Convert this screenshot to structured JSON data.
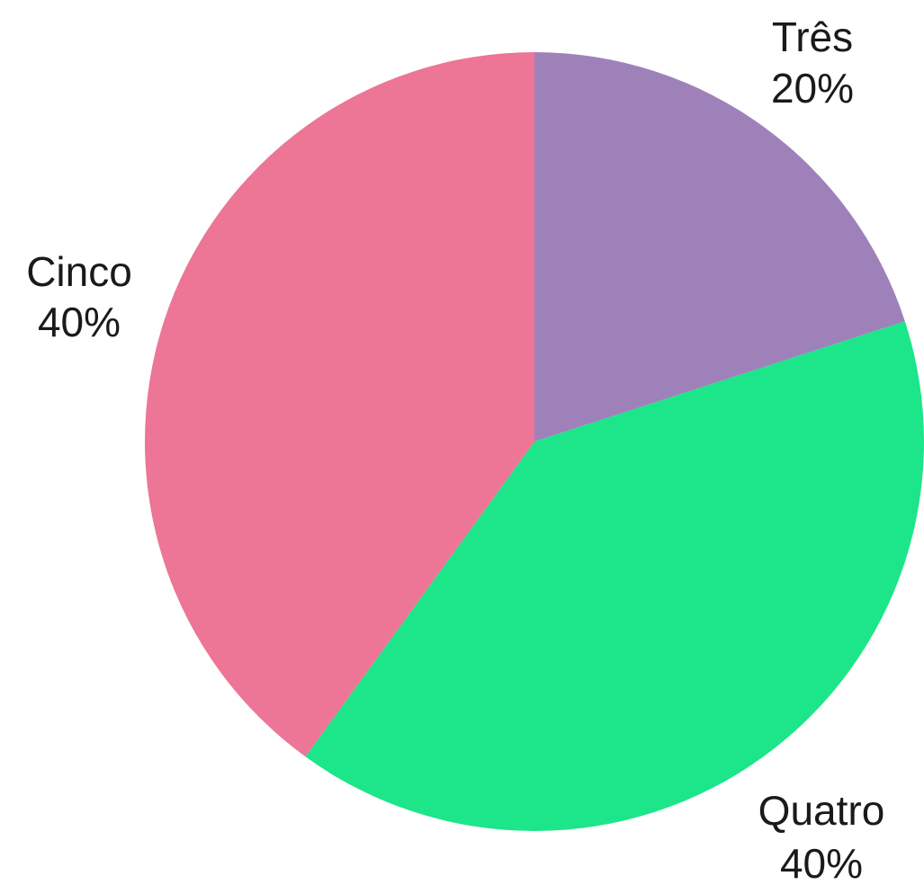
{
  "chart_data": {
    "type": "pie",
    "start_angle_deg": 0,
    "direction": "clockwise",
    "slices": [
      {
        "label": "Três",
        "value": 20,
        "value_label": "20%",
        "color": "#9f81ba"
      },
      {
        "label": "Quatro",
        "value": 40,
        "value_label": "40%",
        "color": "#1de589"
      },
      {
        "label": "Cinco",
        "value": 40,
        "value_label": "40%",
        "color": "#ed7595"
      }
    ]
  }
}
